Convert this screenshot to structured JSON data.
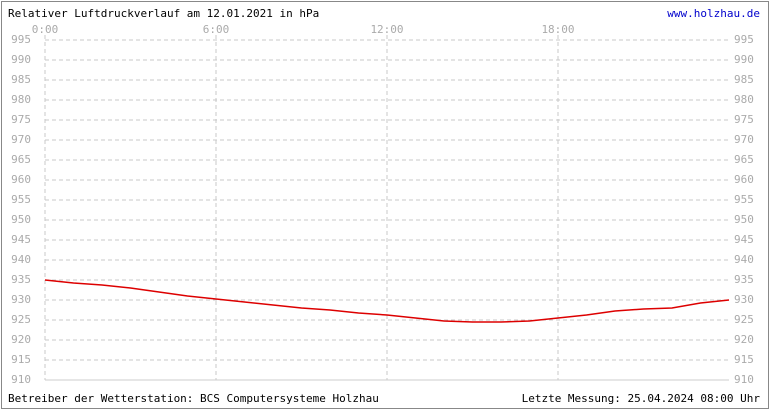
{
  "chart_data": {
    "type": "line",
    "title": "Relativer Luftdruckverlauf am 12.01.2021 in hPa",
    "source": "www.holzhau.de",
    "footer_left": "Betreiber der Wetterstation: BCS Computersysteme Holzhau",
    "footer_right": "Letzte Messung: 25.04.2024 08:00 Uhr",
    "x": [
      0,
      1,
      2,
      3,
      4,
      5,
      6,
      7,
      8,
      9,
      10,
      11,
      12,
      13,
      14,
      15,
      16,
      17,
      18,
      19,
      20,
      21,
      22,
      23,
      24
    ],
    "series": [
      {
        "color": "#dd0000",
        "values": [
          935,
          934.25,
          933.75,
          933,
          932,
          931,
          930.25,
          929.5,
          928.75,
          928,
          927.5,
          926.75,
          926.25,
          925.5,
          924.75,
          924.5,
          924.5,
          924.75,
          925.5,
          926.25,
          927.25,
          927.75,
          928,
          929.25,
          930
        ]
      }
    ],
    "xlim": [
      0,
      24
    ],
    "xticks": [
      {
        "value": 0,
        "label": "0:00"
      },
      {
        "value": 6,
        "label": "6:00"
      },
      {
        "value": 12,
        "label": "12:00"
      },
      {
        "value": 18,
        "label": "18:00"
      }
    ],
    "ylim": [
      910,
      995
    ],
    "yticks": [
      910,
      915,
      920,
      925,
      930,
      935,
      940,
      945,
      950,
      955,
      960,
      965,
      970,
      975,
      980,
      985,
      990,
      995
    ],
    "grid": true
  }
}
